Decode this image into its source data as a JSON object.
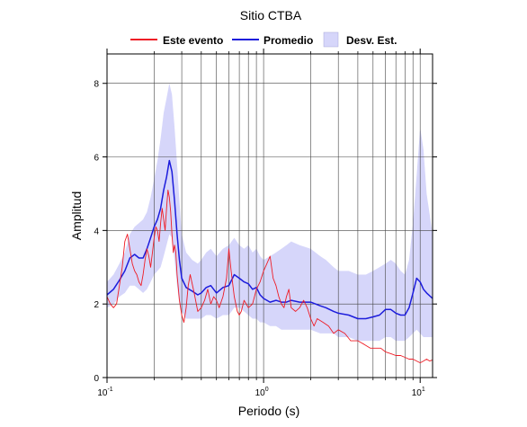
{
  "chart_data": {
    "type": "line",
    "title": "Sitio CTBA",
    "xlabel": "Periodo (s)",
    "ylabel": "Amplitud",
    "x_scale": "log",
    "xlim": [
      0.1,
      12
    ],
    "ylim": [
      0,
      8.8
    ],
    "yticks": [
      0,
      2,
      4,
      6,
      8
    ],
    "xticks": [
      {
        "value": 0.1,
        "base": "10",
        "exp": "-1"
      },
      {
        "value": 1,
        "base": "10",
        "exp": "0"
      },
      {
        "value": 10,
        "base": "10",
        "exp": "1"
      }
    ],
    "grid": true,
    "legend_position": "top",
    "legend": [
      {
        "label": "Este evento",
        "color": "#ee1c25",
        "kind": "line"
      },
      {
        "label": "Promedio",
        "color": "#1c1cdc",
        "kind": "line"
      },
      {
        "label": "Desv. Est.",
        "color": "#d6d6fa",
        "kind": "band"
      }
    ],
    "series": [
      {
        "name": "Promedio",
        "color": "#1c1cdc",
        "x": [
          0.1,
          0.11,
          0.12,
          0.13,
          0.14,
          0.15,
          0.16,
          0.17,
          0.18,
          0.19,
          0.2,
          0.21,
          0.22,
          0.23,
          0.24,
          0.25,
          0.26,
          0.27,
          0.28,
          0.29,
          0.3,
          0.32,
          0.35,
          0.38,
          0.4,
          0.43,
          0.46,
          0.5,
          0.55,
          0.6,
          0.65,
          0.7,
          0.75,
          0.8,
          0.85,
          0.9,
          0.95,
          1.0,
          1.1,
          1.2,
          1.3,
          1.4,
          1.5,
          1.7,
          2.0,
          2.3,
          2.5,
          2.8,
          3.0,
          3.5,
          4.0,
          4.5,
          5.0,
          5.5,
          6.0,
          6.5,
          7.0,
          7.5,
          8.0,
          8.5,
          9.0,
          9.5,
          10.0,
          10.5,
          11.0,
          12.0
        ],
        "y": [
          2.25,
          2.4,
          2.65,
          2.9,
          3.25,
          3.35,
          3.25,
          3.25,
          3.5,
          3.8,
          4.1,
          4.3,
          4.6,
          5.1,
          5.45,
          5.9,
          5.6,
          4.8,
          3.9,
          3.2,
          2.7,
          2.45,
          2.35,
          2.25,
          2.3,
          2.45,
          2.5,
          2.3,
          2.45,
          2.5,
          2.8,
          2.7,
          2.6,
          2.55,
          2.4,
          2.45,
          2.25,
          2.15,
          2.05,
          2.1,
          2.05,
          2.05,
          2.1,
          2.05,
          2.05,
          1.95,
          1.9,
          1.8,
          1.75,
          1.7,
          1.6,
          1.6,
          1.65,
          1.7,
          1.85,
          1.85,
          1.75,
          1.7,
          1.7,
          1.9,
          2.3,
          2.7,
          2.6,
          2.4,
          2.3,
          2.15
        ]
      },
      {
        "name": "Este evento",
        "color": "#ee1c25",
        "x": [
          0.1,
          0.105,
          0.11,
          0.115,
          0.12,
          0.125,
          0.13,
          0.135,
          0.14,
          0.145,
          0.15,
          0.155,
          0.16,
          0.165,
          0.17,
          0.175,
          0.18,
          0.185,
          0.19,
          0.195,
          0.2,
          0.205,
          0.21,
          0.215,
          0.22,
          0.225,
          0.23,
          0.235,
          0.24,
          0.245,
          0.25,
          0.255,
          0.26,
          0.265,
          0.27,
          0.275,
          0.28,
          0.29,
          0.3,
          0.31,
          0.32,
          0.33,
          0.34,
          0.36,
          0.38,
          0.4,
          0.42,
          0.44,
          0.46,
          0.48,
          0.5,
          0.52,
          0.55,
          0.58,
          0.6,
          0.62,
          0.65,
          0.68,
          0.7,
          0.72,
          0.75,
          0.8,
          0.85,
          0.9,
          0.95,
          1.0,
          1.05,
          1.1,
          1.15,
          1.2,
          1.25,
          1.3,
          1.35,
          1.4,
          1.45,
          1.5,
          1.6,
          1.7,
          1.8,
          1.9,
          2.0,
          2.1,
          2.2,
          2.4,
          2.6,
          2.8,
          3.0,
          3.3,
          3.6,
          4.0,
          4.4,
          4.8,
          5.2,
          5.6,
          6.0,
          6.5,
          7.0,
          7.5,
          8.0,
          8.5,
          9.0,
          9.5,
          10.0,
          10.5,
          11.0,
          11.5,
          12.0
        ],
        "y": [
          2.2,
          2.0,
          1.9,
          2.0,
          2.5,
          3.0,
          3.7,
          3.9,
          3.5,
          3.1,
          2.9,
          2.8,
          2.6,
          2.5,
          2.8,
          3.2,
          3.5,
          3.3,
          3.0,
          3.4,
          3.8,
          4.1,
          4.0,
          3.7,
          4.2,
          4.6,
          4.3,
          4.0,
          4.6,
          5.1,
          4.9,
          4.5,
          3.9,
          3.4,
          3.6,
          3.4,
          2.8,
          2.1,
          1.7,
          1.5,
          1.9,
          2.5,
          2.8,
          2.3,
          1.8,
          1.9,
          2.1,
          2.4,
          2.0,
          2.2,
          2.1,
          1.9,
          2.2,
          2.7,
          3.5,
          2.9,
          2.2,
          1.8,
          1.7,
          1.8,
          2.1,
          1.9,
          2.0,
          2.4,
          2.6,
          2.9,
          3.1,
          3.3,
          2.7,
          2.5,
          2.2,
          2.0,
          1.9,
          2.2,
          2.4,
          1.9,
          1.8,
          1.9,
          2.1,
          1.9,
          1.6,
          1.4,
          1.6,
          1.5,
          1.4,
          1.2,
          1.3,
          1.2,
          1.0,
          1.0,
          0.9,
          0.8,
          0.8,
          0.8,
          0.7,
          0.65,
          0.6,
          0.6,
          0.55,
          0.5,
          0.5,
          0.45,
          0.4,
          0.45,
          0.5,
          0.45,
          0.48
        ]
      }
    ],
    "band": {
      "name": "Desv. Est.",
      "color": "#d6d6fa",
      "x": [
        0.1,
        0.11,
        0.12,
        0.13,
        0.14,
        0.15,
        0.16,
        0.17,
        0.18,
        0.19,
        0.2,
        0.21,
        0.22,
        0.23,
        0.24,
        0.25,
        0.26,
        0.27,
        0.28,
        0.29,
        0.3,
        0.32,
        0.35,
        0.38,
        0.4,
        0.43,
        0.46,
        0.5,
        0.55,
        0.6,
        0.65,
        0.7,
        0.75,
        0.8,
        0.85,
        0.9,
        0.95,
        1.0,
        1.1,
        1.2,
        1.3,
        1.4,
        1.5,
        1.7,
        2.0,
        2.3,
        2.5,
        2.8,
        3.0,
        3.5,
        4.0,
        4.5,
        5.0,
        5.5,
        6.0,
        6.5,
        7.0,
        7.5,
        8.0,
        8.5,
        9.0,
        9.5,
        10.0,
        10.5,
        11.0,
        12.0
      ],
      "upper": [
        2.6,
        2.8,
        3.1,
        3.4,
        3.9,
        4.1,
        4.2,
        4.3,
        4.5,
        4.9,
        5.4,
        5.9,
        6.5,
        7.2,
        7.6,
        8.0,
        7.7,
        6.8,
        5.8,
        4.8,
        3.9,
        3.4,
        3.2,
        3.1,
        3.2,
        3.4,
        3.5,
        3.3,
        3.5,
        3.6,
        3.8,
        3.6,
        3.5,
        3.6,
        3.4,
        3.5,
        3.3,
        3.2,
        3.3,
        3.4,
        3.5,
        3.6,
        3.7,
        3.6,
        3.5,
        3.3,
        3.2,
        3.0,
        2.9,
        2.9,
        2.8,
        2.8,
        2.9,
        3.0,
        3.1,
        3.2,
        3.1,
        2.9,
        2.8,
        3.2,
        4.2,
        5.5,
        6.8,
        6.2,
        5.0,
        3.9
      ],
      "lower": [
        1.9,
        2.0,
        2.2,
        2.3,
        2.5,
        2.5,
        2.4,
        2.3,
        2.4,
        2.6,
        2.8,
        2.9,
        3.0,
        3.3,
        3.6,
        3.9,
        3.8,
        3.2,
        2.5,
        2.0,
        1.8,
        1.6,
        1.6,
        1.6,
        1.6,
        1.7,
        1.7,
        1.6,
        1.7,
        1.7,
        1.9,
        1.9,
        1.8,
        1.7,
        1.6,
        1.6,
        1.5,
        1.5,
        1.4,
        1.4,
        1.3,
        1.3,
        1.3,
        1.3,
        1.3,
        1.2,
        1.2,
        1.2,
        1.1,
        1.1,
        1.0,
        1.0,
        1.0,
        1.0,
        1.1,
        1.1,
        1.0,
        1.0,
        1.0,
        1.1,
        1.2,
        1.3,
        1.2,
        1.1,
        1.1,
        1.1
      ]
    }
  }
}
